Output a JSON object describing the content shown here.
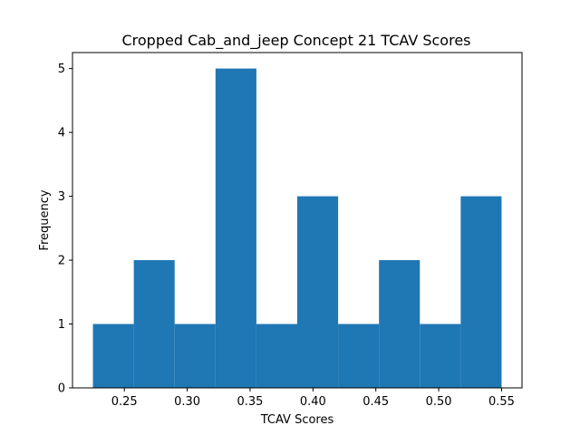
{
  "chart_data": {
    "type": "bar",
    "subtype": "histogram",
    "title": "Cropped Cab_and_jeep Concept 21 TCAV Scores",
    "xlabel": "TCAV Scores",
    "ylabel": "Frequency",
    "bin_edges": [
      0.225,
      0.2575,
      0.29,
      0.3225,
      0.355,
      0.3875,
      0.42,
      0.4525,
      0.485,
      0.5175,
      0.55
    ],
    "values": [
      1,
      2,
      1,
      5,
      1,
      3,
      1,
      2,
      1,
      3
    ],
    "xlim": [
      0.20875,
      0.56625
    ],
    "ylim": [
      0,
      5.25
    ],
    "xticks": [
      "0.25",
      "0.30",
      "0.35",
      "0.40",
      "0.45",
      "0.50",
      "0.55"
    ],
    "yticks": [
      "0",
      "1",
      "2",
      "3",
      "4",
      "5"
    ],
    "bar_color": "#1f77b4",
    "grid": false,
    "legend": "none"
  }
}
